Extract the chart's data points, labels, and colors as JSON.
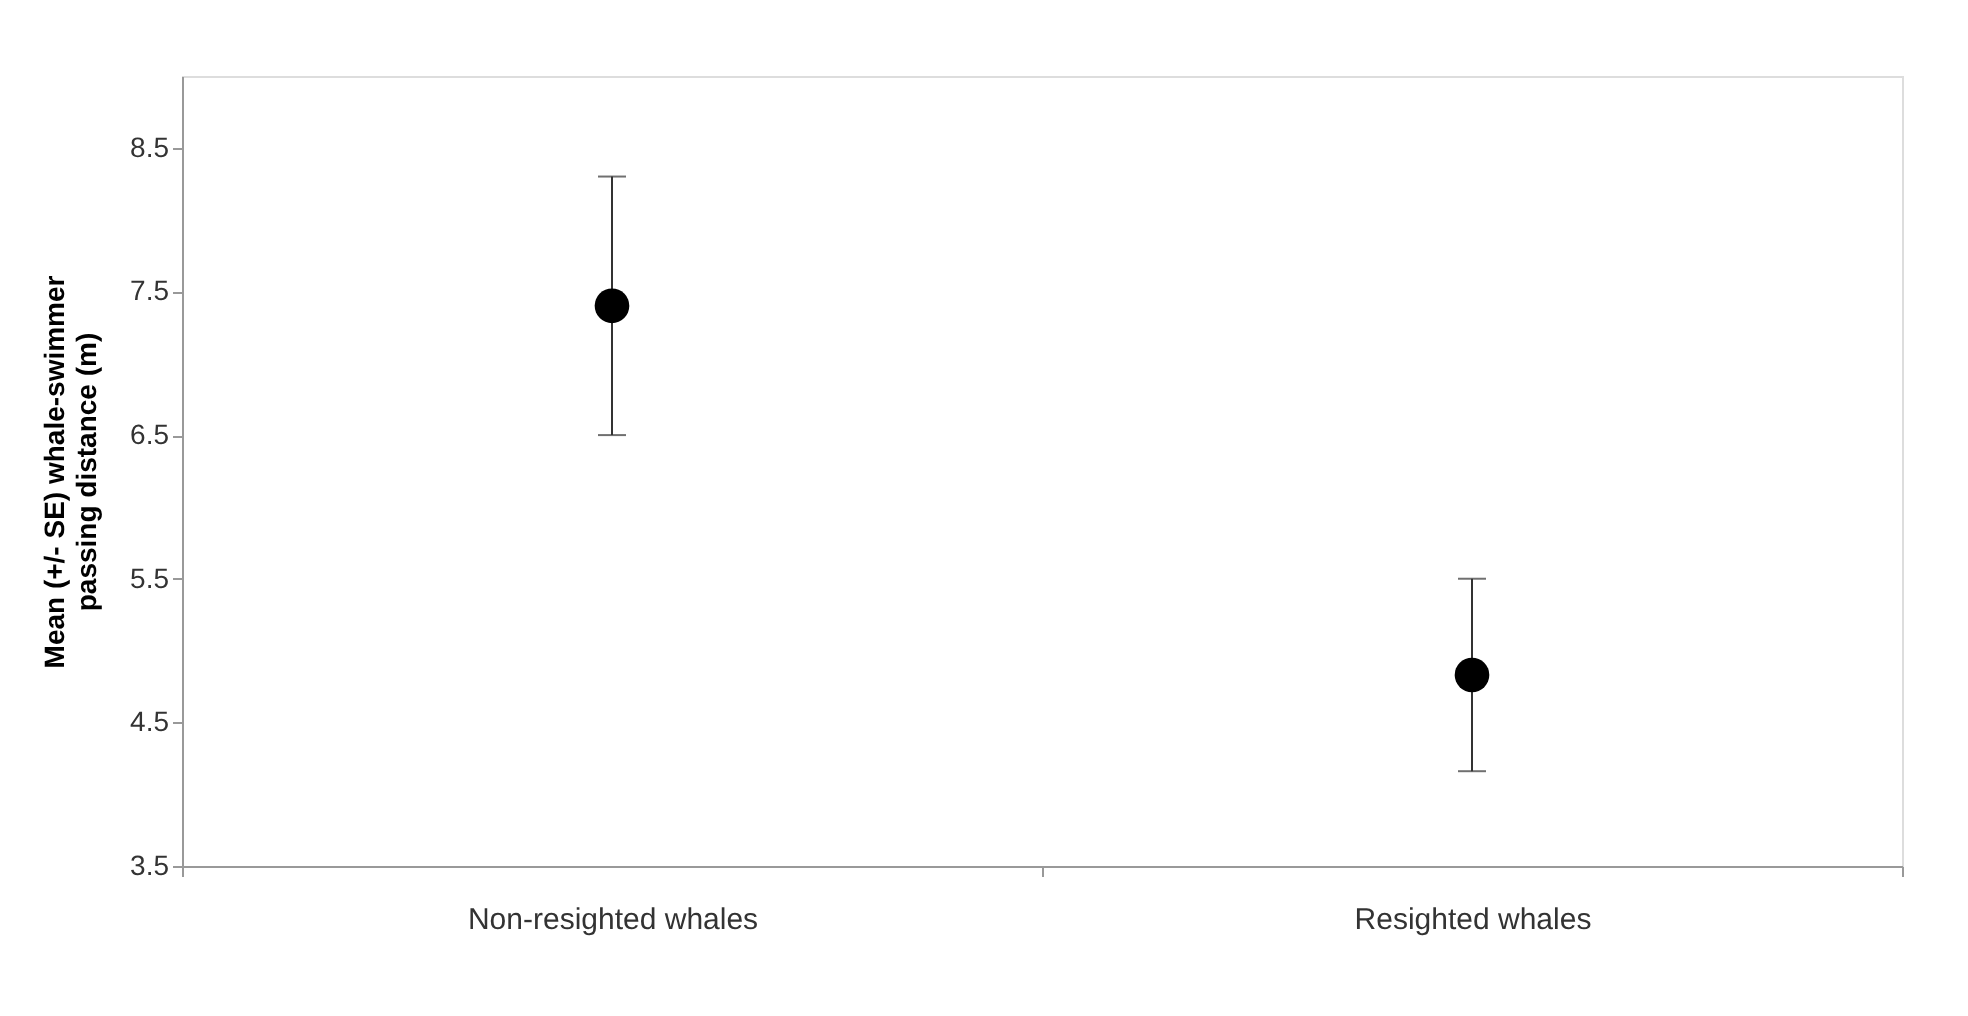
{
  "chart_data": {
    "type": "scatter",
    "ylabel": "Mean (+/- SE) whale-swimmer\npassing distance (m)",
    "categories": [
      "Non-resighted whales",
      "Resighted whales"
    ],
    "series": [
      {
        "color": "#000000",
        "values": [
          7.4,
          4.83
        ],
        "errors": [
          0.9,
          0.67
        ]
      }
    ],
    "ylim": [
      3.5,
      9.0
    ],
    "yticks": [
      3.5,
      4.5,
      5.5,
      6.5,
      7.5,
      8.5
    ],
    "grid": false,
    "marker": "circle"
  }
}
